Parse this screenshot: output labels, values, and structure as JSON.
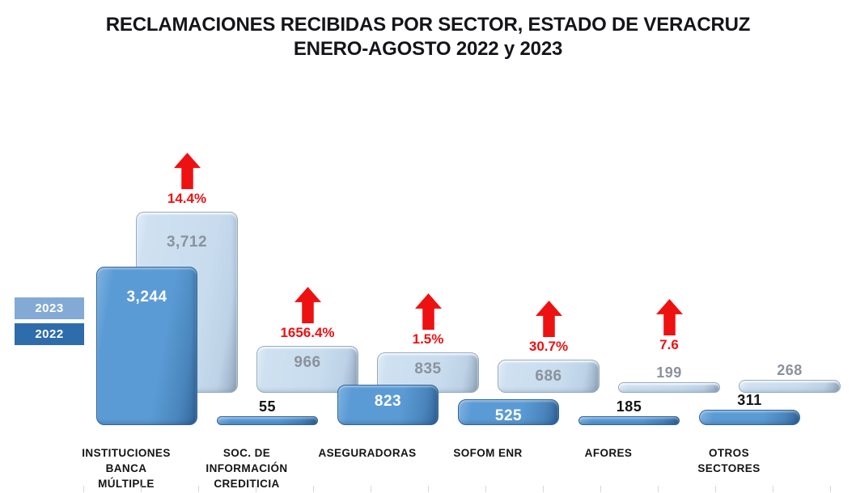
{
  "title": {
    "line1": "RECLAMACIONES RECIBIDAS POR SECTOR, ESTADO DE VERACRUZ",
    "line2": "ENERO-AGOSTO 2022 y 2023"
  },
  "legend": {
    "items": [
      {
        "label": "2023",
        "color": "#83aad4"
      },
      {
        "label": "2022",
        "color": "#2e6cac"
      }
    ]
  },
  "chart_data": {
    "type": "bar",
    "title": "RECLAMACIONES RECIBIDAS POR SECTOR, ESTADO DE VERACRUZ ENERO-AGOSTO 2022 y 2023",
    "categories": [
      "INSTITUCIONES BANCA MÚLTIPLE",
      "SOC. DE INFORMACIÓN CREDITICIA",
      "ASEGURADORAS",
      "SOFOM ENR",
      "AFORES",
      "OTROS SECTORES"
    ],
    "category_lines": [
      [
        "INSTITUCIONES",
        "BANCA",
        "MÚLTIPLE"
      ],
      [
        "SOC. DE",
        "INFORMACIÓN",
        "CREDITICIA"
      ],
      [
        "ASEGURADORAS"
      ],
      [
        "SOFOM ENR"
      ],
      [
        "AFORES"
      ],
      [
        "OTROS",
        "SECTORES"
      ]
    ],
    "series": [
      {
        "name": "2023",
        "color": "#cadded",
        "values": [
          3712,
          966,
          835,
          686,
          199,
          268
        ],
        "labels": [
          "3,712",
          "966",
          "835",
          "686",
          "199",
          "268"
        ]
      },
      {
        "name": "2022",
        "color": "#5b9bd5",
        "values": [
          3244,
          55,
          823,
          525,
          185,
          311
        ],
        "labels": [
          "3,244",
          "55",
          "823",
          "525",
          "185",
          "311"
        ]
      }
    ],
    "pct_change": [
      "14.4%",
      "1656.4%",
      "1.5%",
      "30.7%",
      "7.6",
      null
    ],
    "arrow_color": "#ee1111",
    "pct_color": "#ee1111",
    "value_label_colors": {
      "on_light": "#8a929c",
      "on_dark": "#ffffff",
      "outside": "#141414"
    },
    "ylim": [
      0,
      3712
    ],
    "legend_position": "left",
    "y_axis_hidden": true,
    "x_axis_ticks_decorative": true
  }
}
